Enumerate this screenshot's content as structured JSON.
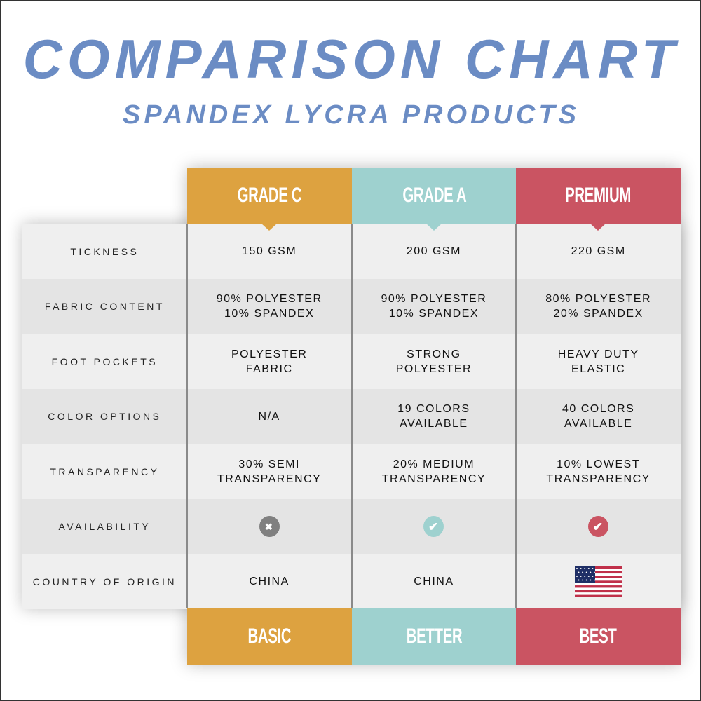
{
  "title": "COMPARISON CHART",
  "subtitle": "SPANDEX LYCRA PRODUCTS",
  "colors": {
    "grade_c": "#dda240",
    "grade_a": "#9ed1cf",
    "premium": "#ca5462",
    "title": "#6b8cc4",
    "unavailable": "#808080"
  },
  "columns": [
    {
      "header": "GRADE C",
      "footer": "BASIC"
    },
    {
      "header": "GRADE A",
      "footer": "BETTER"
    },
    {
      "header": "PREMIUM",
      "footer": "BEST"
    }
  ],
  "rows": [
    {
      "label": "TICKNESS",
      "values": [
        "150 GSM",
        "200 GSM",
        "220 GSM"
      ]
    },
    {
      "label": "FABRIC CONTENT",
      "values": [
        "90% POLYESTER\n10% SPANDEX",
        "90% POLYESTER\n10% SPANDEX",
        "80% POLYESTER\n20% SPANDEX"
      ]
    },
    {
      "label": "FOOT POCKETS",
      "values": [
        "POLYESTER\nFABRIC",
        "STRONG\nPOLYESTER",
        "HEAVY DUTY\nELASTIC"
      ]
    },
    {
      "label": "COLOR OPTIONS",
      "values": [
        "N/A",
        "19 COLORS\nAVAILABLE",
        "40 COLORS\nAVAILABLE"
      ]
    },
    {
      "label": "TRANSPARENCY",
      "values": [
        "30% SEMI\nTRANSPARENCY",
        "20% MEDIUM\nTRANSPARENCY",
        "10% LOWEST\nTRANSPARENCY"
      ]
    },
    {
      "label": "AVAILABILITY",
      "icons": [
        "x-circle-icon",
        "check-circle-icon",
        "check-circle-icon"
      ]
    },
    {
      "label": "COUNTRY OF ORIGIN",
      "values": [
        "CHINA",
        "CHINA",
        ""
      ],
      "icons": [
        "",
        "",
        "us-flag-icon"
      ]
    }
  ]
}
